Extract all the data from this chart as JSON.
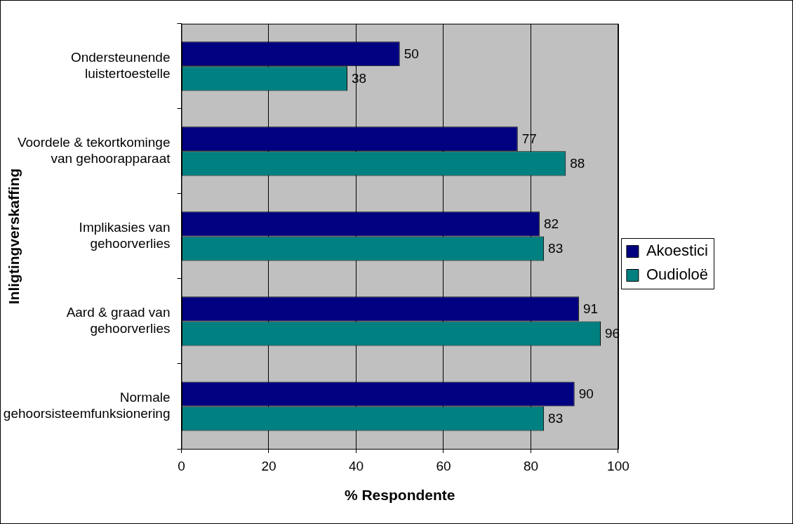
{
  "chart_data": {
    "type": "bar",
    "orientation": "horizontal",
    "xlabel": "% Respondente",
    "ylabel": "Inligtingverskaffing",
    "categories": [
      "Ondersteunende luistertoestelle",
      "Voordele & tekortkominge van gehoorapparaat",
      "Implikasies van gehoorverlies",
      "Aard & graad van gehoorverlies",
      "Normale gehoorsisteemfunksionering"
    ],
    "series": [
      {
        "name": "Akoestici",
        "color": "#000080",
        "values": [
          50,
          77,
          82,
          91,
          90
        ]
      },
      {
        "name": "Oudioloë",
        "color": "#008080",
        "values": [
          38,
          88,
          83,
          96,
          83
        ]
      }
    ],
    "xlim": [
      0,
      100
    ],
    "xticks": [
      0,
      20,
      40,
      60,
      80,
      100
    ],
    "grid": "x",
    "legend": "right",
    "data_labels": true
  }
}
